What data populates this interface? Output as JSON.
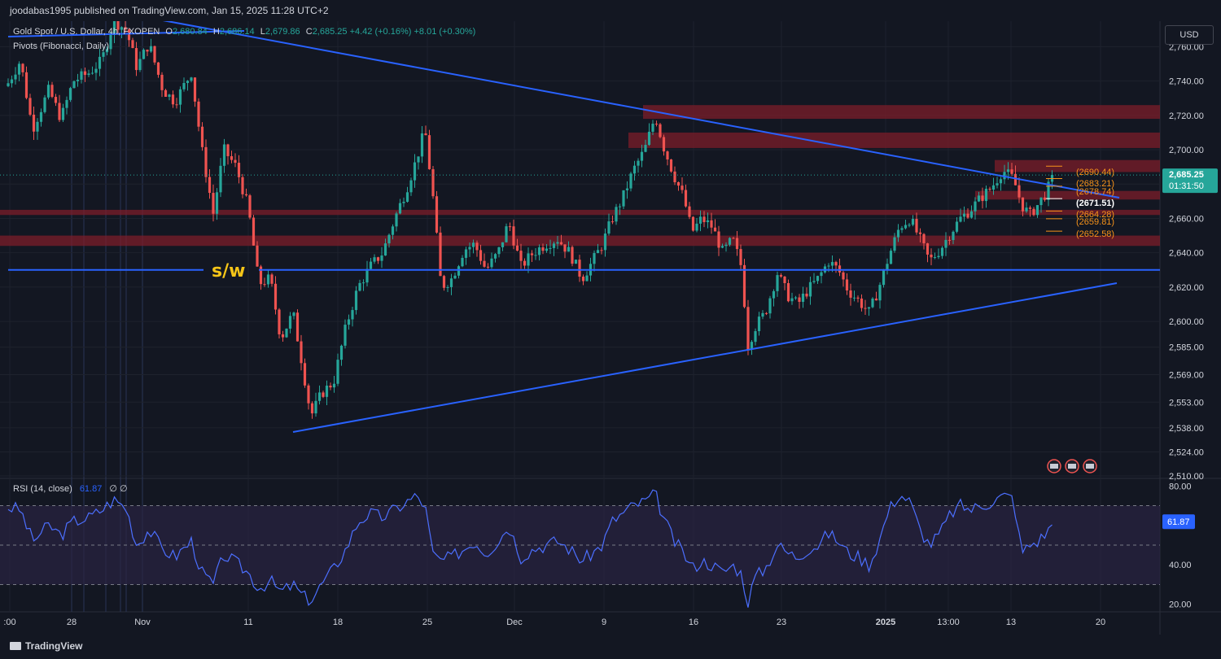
{
  "header": {
    "publisher_text": "joodabas1995 published on TradingView.com, Jan 15, 2025 11:28 UTC+2"
  },
  "legend": {
    "symbol": "Gold Spot / U.S. Dollar, 4h, FXOPEN",
    "o_label": "O",
    "o": "2,680.84",
    "h_label": "H",
    "h": "2,686.14",
    "l_label": "L",
    "l": "2,679.86",
    "c_label": "C",
    "c": "2,685.25",
    "change": "+4.42 (+0.16%)",
    "change2": "+8.01 (+0.30%)",
    "pivots": "Pivots (Fibonacci, Daily)"
  },
  "currency_button": "USD",
  "rsi_legend": {
    "name": "RSI (14, close)",
    "value": "61.87",
    "extra": "∅ ∅"
  },
  "footer": {
    "logo": "TradingView"
  },
  "colors": {
    "bg": "#131722",
    "grid": "#1e222d",
    "up": "#26a69a",
    "down": "#ef5350",
    "trend": "#2962ff",
    "zone": "#7f1d2a",
    "pivot": "#f7931a",
    "text": "#d1d4dc",
    "rsi_band": "#2a2442",
    "sw_label": "#f5c518"
  },
  "chart_data": [
    {
      "type": "candlestick",
      "title": "Gold Spot / U.S. Dollar, 4h, FXOPEN",
      "x_ticks": [
        ":00",
        "28",
        "Nov",
        "11",
        "18",
        "25",
        "Dec",
        "9",
        "16",
        "23",
        "2025",
        "13:00",
        "13",
        "20"
      ],
      "y_ticks": [
        "2,760.00",
        "2,740.00",
        "2,720.00",
        "2,700.00",
        "2,680.00",
        "2,660.00",
        "2,640.00",
        "2,620.00",
        "2,600.00",
        "2,585.00",
        "2,569.00",
        "2,553.00",
        "2,538.00",
        "2,524.00",
        "2,510.00"
      ],
      "ylim": [
        2510,
        2773
      ],
      "last_price": "2,685.25",
      "countdown": "01:31:50",
      "price_path": [
        [
          0,
          2730
        ],
        [
          25,
          2752
        ],
        [
          40,
          2712
        ],
        [
          60,
          2735
        ],
        [
          75,
          2718
        ],
        [
          90,
          2740
        ],
        [
          110,
          2745
        ],
        [
          125,
          2752
        ],
        [
          140,
          2775
        ],
        [
          155,
          2770
        ],
        [
          168,
          2748
        ],
        [
          183,
          2762
        ],
        [
          200,
          2735
        ],
        [
          215,
          2728
        ],
        [
          235,
          2745
        ],
        [
          248,
          2700
        ],
        [
          262,
          2663
        ],
        [
          275,
          2700
        ],
        [
          290,
          2690
        ],
        [
          305,
          2666
        ],
        [
          318,
          2622
        ],
        [
          332,
          2625
        ],
        [
          345,
          2590
        ],
        [
          360,
          2605
        ],
        [
          372,
          2573
        ],
        [
          382,
          2545
        ],
        [
          395,
          2558
        ],
        [
          410,
          2565
        ],
        [
          425,
          2597
        ],
        [
          440,
          2620
        ],
        [
          455,
          2632
        ],
        [
          470,
          2640
        ],
        [
          485,
          2660
        ],
        [
          500,
          2678
        ],
        [
          512,
          2695
        ],
        [
          522,
          2712
        ],
        [
          532,
          2672
        ],
        [
          542,
          2620
        ],
        [
          555,
          2625
        ],
        [
          570,
          2642
        ],
        [
          583,
          2645
        ],
        [
          597,
          2630
        ],
        [
          612,
          2640
        ],
        [
          625,
          2658
        ],
        [
          640,
          2632
        ],
        [
          655,
          2640
        ],
        [
          670,
          2645
        ],
        [
          685,
          2648
        ],
        [
          700,
          2640
        ],
        [
          715,
          2625
        ],
        [
          728,
          2635
        ],
        [
          740,
          2645
        ],
        [
          752,
          2660
        ],
        [
          765,
          2672
        ],
        [
          778,
          2688
        ],
        [
          792,
          2700
        ],
        [
          805,
          2720
        ],
        [
          815,
          2702
        ],
        [
          828,
          2685
        ],
        [
          840,
          2672
        ],
        [
          850,
          2652
        ],
        [
          862,
          2660
        ],
        [
          875,
          2655
        ],
        [
          888,
          2640
        ],
        [
          900,
          2648
        ],
        [
          912,
          2630
        ],
        [
          918,
          2585
        ],
        [
          928,
          2597
        ],
        [
          940,
          2605
        ],
        [
          955,
          2628
        ],
        [
          968,
          2615
        ],
        [
          980,
          2610
        ],
        [
          992,
          2618
        ],
        [
          1005,
          2625
        ],
        [
          1018,
          2635
        ],
        [
          1030,
          2630
        ],
        [
          1042,
          2618
        ],
        [
          1055,
          2612
        ],
        [
          1068,
          2605
        ],
        [
          1080,
          2620
        ],
        [
          1092,
          2638
        ],
        [
          1105,
          2655
        ],
        [
          1118,
          2660
        ],
        [
          1130,
          2648
        ],
        [
          1142,
          2635
        ],
        [
          1155,
          2642
        ],
        [
          1168,
          2652
        ],
        [
          1180,
          2660
        ],
        [
          1192,
          2665
        ],
        [
          1205,
          2672
        ],
        [
          1218,
          2678
        ],
        [
          1232,
          2688
        ],
        [
          1245,
          2683
        ],
        [
          1255,
          2668
        ],
        [
          1265,
          2662
        ],
        [
          1275,
          2668
        ],
        [
          1285,
          2675
        ],
        [
          1295,
          2685
        ]
      ],
      "sw_label": "s/w",
      "pivot_levels": [
        "(2690.44)",
        "(2683.21)",
        "(2678.74)",
        "(2671.51)",
        "(2664.28)",
        "(2659.81)",
        "(2652.58)"
      ],
      "resistance_zones": [
        {
          "from": 2718,
          "to": 2726
        },
        {
          "from": 2701,
          "to": 2710
        },
        {
          "from": 2687,
          "to": 2694
        },
        {
          "from": 2671,
          "to": 2676
        },
        {
          "from": 2662,
          "to": 2665
        },
        {
          "from": 2644,
          "to": 2650
        }
      ],
      "support_line": 2630
    },
    {
      "type": "line",
      "title": "RSI (14, close)",
      "y_ticks": [
        "80.00",
        "40.00",
        "20.00"
      ],
      "ylim": [
        17,
        83
      ],
      "bands": [
        70,
        50,
        30
      ],
      "last_value": "61.87",
      "values": [
        [
          0,
          70
        ],
        [
          25,
          68
        ],
        [
          40,
          52
        ],
        [
          60,
          60
        ],
        [
          75,
          55
        ],
        [
          90,
          62
        ],
        [
          110,
          64
        ],
        [
          125,
          68
        ],
        [
          140,
          73
        ],
        [
          155,
          69
        ],
        [
          168,
          50
        ],
        [
          183,
          58
        ],
        [
          200,
          48
        ],
        [
          215,
          44
        ],
        [
          235,
          52
        ],
        [
          248,
          36
        ],
        [
          262,
          30
        ],
        [
          275,
          45
        ],
        [
          290,
          41
        ],
        [
          305,
          36
        ],
        [
          318,
          28
        ],
        [
          332,
          32
        ],
        [
          345,
          26
        ],
        [
          360,
          30
        ],
        [
          372,
          24
        ],
        [
          382,
          22
        ],
        [
          395,
          30
        ],
        [
          410,
          38
        ],
        [
          425,
          48
        ],
        [
          440,
          62
        ],
        [
          455,
          66
        ],
        [
          470,
          64
        ],
        [
          485,
          68
        ],
        [
          500,
          72
        ],
        [
          512,
          75
        ],
        [
          522,
          70
        ],
        [
          532,
          45
        ],
        [
          542,
          42
        ],
        [
          555,
          44
        ],
        [
          570,
          48
        ],
        [
          583,
          52
        ],
        [
          597,
          46
        ],
        [
          612,
          52
        ],
        [
          625,
          60
        ],
        [
          640,
          44
        ],
        [
          655,
          48
        ],
        [
          670,
          50
        ],
        [
          685,
          52
        ],
        [
          700,
          48
        ],
        [
          715,
          42
        ],
        [
          728,
          46
        ],
        [
          740,
          50
        ],
        [
          752,
          62
        ],
        [
          765,
          66
        ],
        [
          778,
          70
        ],
        [
          792,
          72
        ],
        [
          805,
          76
        ],
        [
          815,
          64
        ],
        [
          828,
          52
        ],
        [
          840,
          46
        ],
        [
          850,
          38
        ],
        [
          862,
          42
        ],
        [
          875,
          40
        ],
        [
          888,
          36
        ],
        [
          900,
          40
        ],
        [
          912,
          35
        ],
        [
          918,
          20
        ],
        [
          928,
          34
        ],
        [
          940,
          38
        ],
        [
          955,
          50
        ],
        [
          968,
          46
        ],
        [
          980,
          44
        ],
        [
          992,
          48
        ],
        [
          1005,
          50
        ],
        [
          1018,
          56
        ],
        [
          1030,
          52
        ],
        [
          1042,
          46
        ],
        [
          1055,
          44
        ],
        [
          1068,
          40
        ],
        [
          1080,
          52
        ],
        [
          1092,
          68
        ],
        [
          1105,
          76
        ],
        [
          1118,
          72
        ],
        [
          1130,
          58
        ],
        [
          1142,
          50
        ],
        [
          1155,
          56
        ],
        [
          1168,
          66
        ],
        [
          1180,
          70
        ],
        [
          1192,
          68
        ],
        [
          1205,
          70
        ],
        [
          1218,
          72
        ],
        [
          1232,
          75
        ],
        [
          1245,
          74
        ],
        [
          1255,
          46
        ],
        [
          1265,
          50
        ],
        [
          1275,
          52
        ],
        [
          1285,
          56
        ],
        [
          1295,
          62
        ]
      ]
    }
  ]
}
